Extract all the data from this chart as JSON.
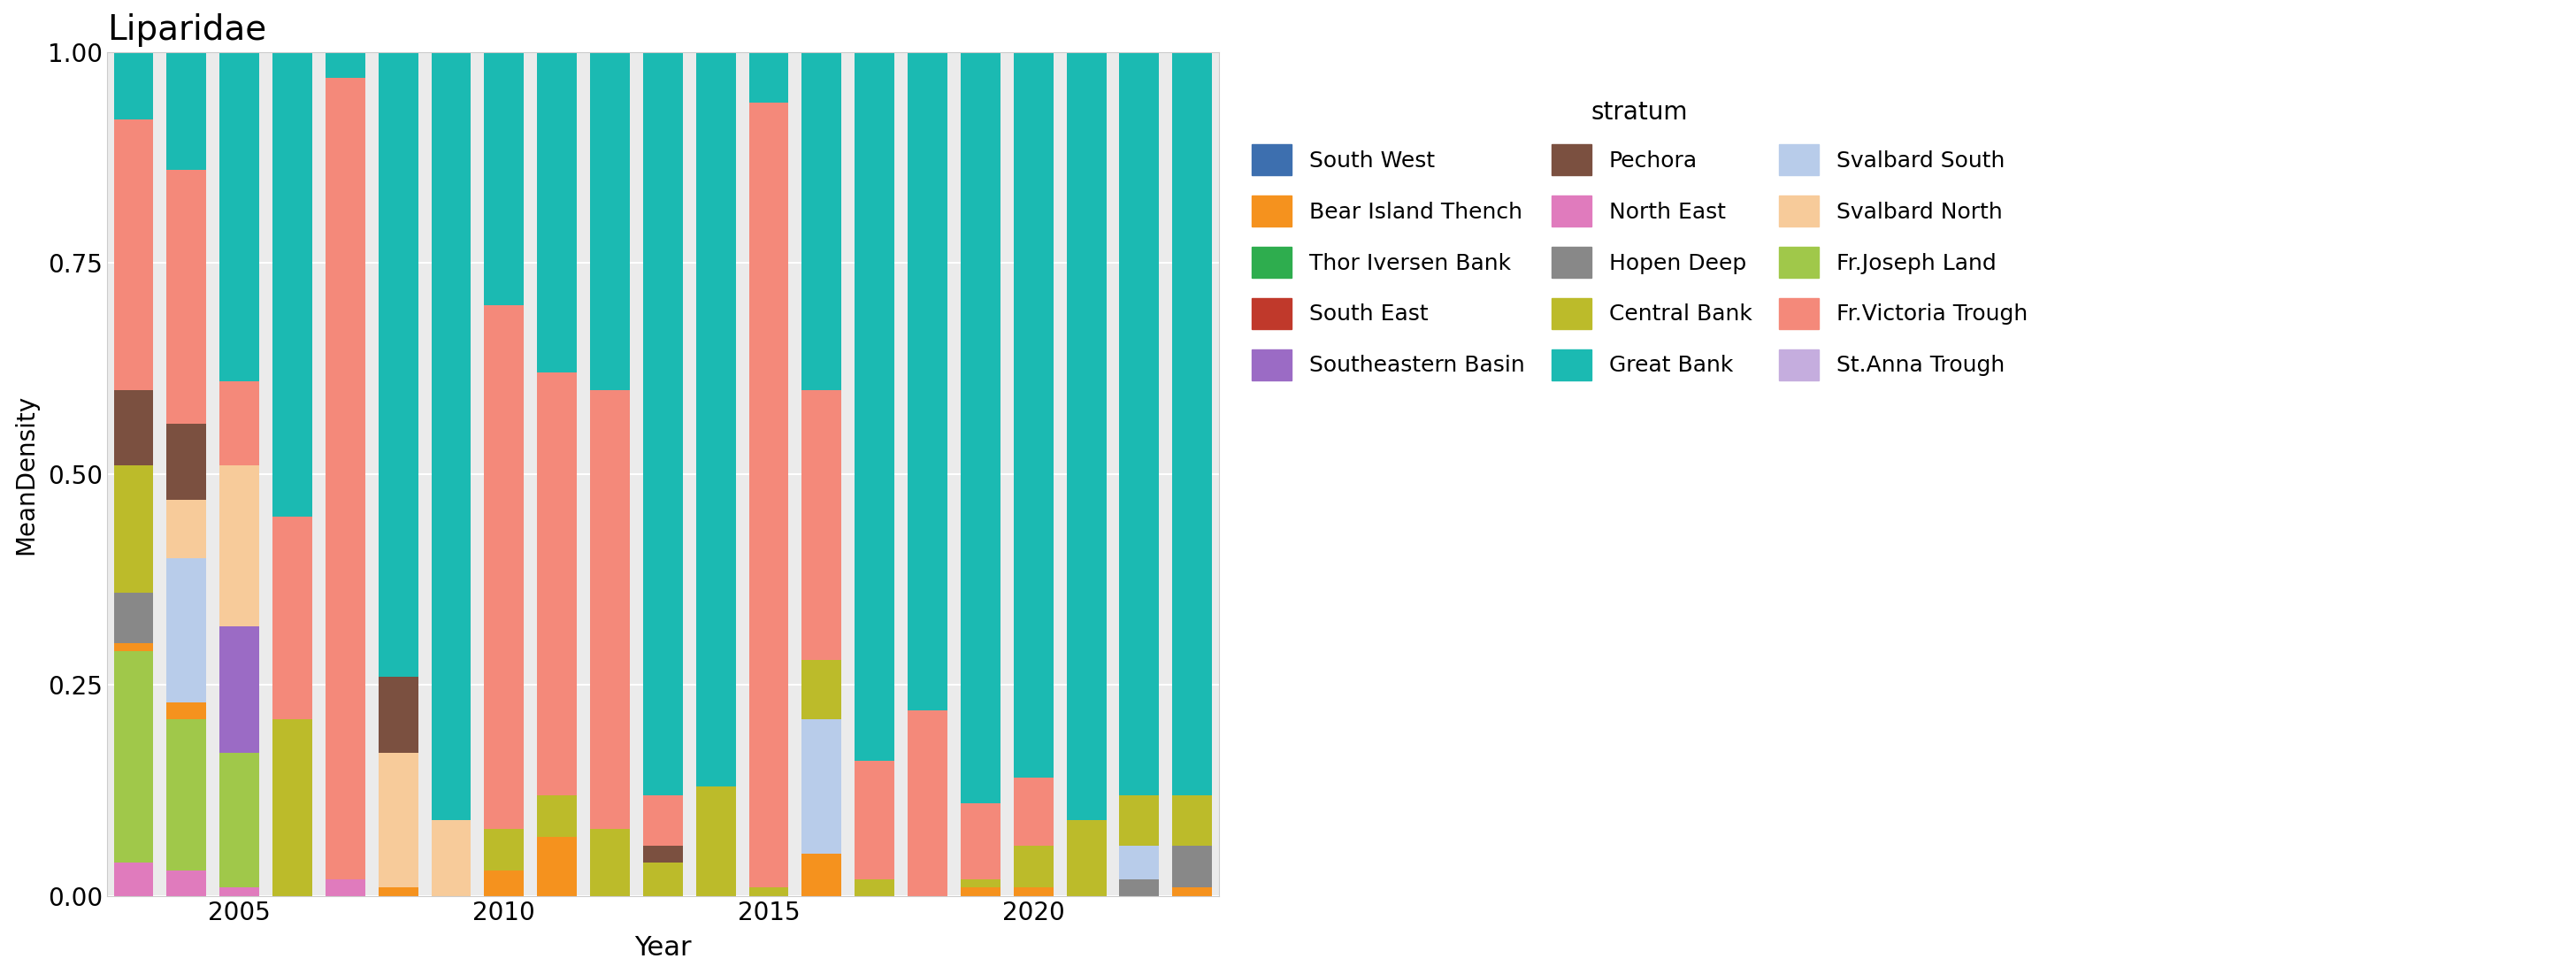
{
  "title": "Liparidae",
  "xlabel": "Year",
  "ylabel": "MeanDensity",
  "legend_title": "stratum",
  "strata_order": [
    "South West",
    "South East",
    "North East",
    "Fr.Joseph Land",
    "Bear Island Thench",
    "Southeastern Basin",
    "Hopen Deep",
    "Svalbard South",
    "Svalbard North",
    "Central Bank",
    "Pechora",
    "Thor Iversen Bank",
    "St.Anna Trough",
    "Fr.Victoria Trough",
    "Great Bank"
  ],
  "colors": {
    "South West": "#3D6FAF",
    "South East": "#C0392B",
    "North East": "#E07BBD",
    "Great Bank": "#1BBAB2",
    "Fr.Joseph Land": "#A0C84A",
    "Bear Island Thench": "#F5921E",
    "Southeastern Basin": "#9B6BC5",
    "Hopen Deep": "#888888",
    "Svalbard South": "#B8CCEA",
    "Fr.Victoria Trough": "#F4897A",
    "Thor Iversen Bank": "#2EAD4E",
    "Pechora": "#7B5040",
    "Central Bank": "#BCBB2A",
    "Svalbard North": "#F7CB9A",
    "St.Anna Trough": "#C5ADDE"
  },
  "years": [
    2003,
    2004,
    2005,
    2006,
    2007,
    2008,
    2009,
    2010,
    2011,
    2012,
    2013,
    2014,
    2015,
    2016,
    2017,
    2018,
    2019,
    2020,
    2021,
    2022,
    2023
  ],
  "data": {
    "South West": [
      0.0,
      0.0,
      0.0,
      0.0,
      0.0,
      0.0,
      0.0,
      0.0,
      0.0,
      0.0,
      0.0,
      0.0,
      0.0,
      0.0,
      0.0,
      0.0,
      0.0,
      0.0,
      0.0,
      0.0,
      0.0
    ],
    "South East": [
      0.0,
      0.0,
      0.0,
      0.0,
      0.0,
      0.0,
      0.0,
      0.0,
      0.0,
      0.0,
      0.0,
      0.0,
      0.0,
      0.0,
      0.0,
      0.0,
      0.0,
      0.0,
      0.0,
      0.0,
      0.0
    ],
    "North East": [
      0.04,
      0.03,
      0.01,
      0.0,
      0.02,
      0.0,
      0.0,
      0.0,
      0.0,
      0.0,
      0.0,
      0.0,
      0.0,
      0.0,
      0.0,
      0.0,
      0.0,
      0.0,
      0.0,
      0.0,
      0.0
    ],
    "Fr.Joseph Land": [
      0.25,
      0.18,
      0.16,
      0.0,
      0.0,
      0.0,
      0.0,
      0.0,
      0.0,
      0.0,
      0.0,
      0.0,
      0.0,
      0.0,
      0.0,
      0.0,
      0.0,
      0.0,
      0.0,
      0.0,
      0.0
    ],
    "Bear Island Thench": [
      0.01,
      0.02,
      0.0,
      0.0,
      0.0,
      0.01,
      0.0,
      0.03,
      0.07,
      0.0,
      0.0,
      0.0,
      0.0,
      0.05,
      0.0,
      0.0,
      0.01,
      0.01,
      0.0,
      0.0,
      0.01
    ],
    "Southeastern Basin": [
      0.0,
      0.0,
      0.15,
      0.0,
      0.0,
      0.0,
      0.0,
      0.0,
      0.0,
      0.0,
      0.0,
      0.0,
      0.0,
      0.0,
      0.0,
      0.0,
      0.0,
      0.0,
      0.0,
      0.0,
      0.0
    ],
    "Hopen Deep": [
      0.06,
      0.0,
      0.0,
      0.0,
      0.0,
      0.0,
      0.0,
      0.0,
      0.0,
      0.0,
      0.0,
      0.0,
      0.0,
      0.0,
      0.0,
      0.0,
      0.0,
      0.0,
      0.0,
      0.02,
      0.05
    ],
    "Svalbard South": [
      0.0,
      0.17,
      0.0,
      0.0,
      0.0,
      0.0,
      0.0,
      0.0,
      0.0,
      0.0,
      0.0,
      0.0,
      0.0,
      0.16,
      0.0,
      0.0,
      0.0,
      0.0,
      0.0,
      0.04,
      0.0
    ],
    "Svalbard North": [
      0.0,
      0.07,
      0.19,
      0.0,
      0.0,
      0.16,
      0.09,
      0.0,
      0.0,
      0.0,
      0.0,
      0.0,
      0.0,
      0.0,
      0.0,
      0.0,
      0.0,
      0.0,
      0.0,
      0.0,
      0.0
    ],
    "Central Bank": [
      0.15,
      0.0,
      0.0,
      0.21,
      0.0,
      0.0,
      0.0,
      0.05,
      0.05,
      0.08,
      0.04,
      0.13,
      0.01,
      0.07,
      0.02,
      0.0,
      0.01,
      0.05,
      0.09,
      0.06,
      0.06
    ],
    "Pechora": [
      0.09,
      0.09,
      0.0,
      0.0,
      0.0,
      0.09,
      0.0,
      0.0,
      0.0,
      0.0,
      0.02,
      0.0,
      0.0,
      0.0,
      0.0,
      0.0,
      0.0,
      0.0,
      0.0,
      0.0,
      0.0
    ],
    "Thor Iversen Bank": [
      0.0,
      0.0,
      0.0,
      0.0,
      0.0,
      0.0,
      0.0,
      0.0,
      0.0,
      0.0,
      0.0,
      0.0,
      0.0,
      0.0,
      0.0,
      0.0,
      0.0,
      0.0,
      0.0,
      0.0,
      0.0
    ],
    "St.Anna Trough": [
      0.0,
      0.0,
      0.0,
      0.0,
      0.0,
      0.0,
      0.0,
      0.0,
      0.0,
      0.0,
      0.0,
      0.0,
      0.0,
      0.0,
      0.0,
      0.0,
      0.0,
      0.0,
      0.0,
      0.0,
      0.0
    ],
    "Fr.Victoria Trough": [
      0.32,
      0.3,
      0.1,
      0.24,
      0.95,
      0.0,
      0.0,
      0.62,
      0.5,
      0.52,
      0.06,
      0.0,
      0.93,
      0.32,
      0.14,
      0.22,
      0.09,
      0.08,
      0.0,
      0.0,
      0.0
    ],
    "Great Bank": [
      0.08,
      0.14,
      0.39,
      0.55,
      0.03,
      0.74,
      0.91,
      0.3,
      0.38,
      0.4,
      0.88,
      0.87,
      0.06,
      0.4,
      0.84,
      0.78,
      0.89,
      0.86,
      0.91,
      0.88,
      0.88
    ]
  },
  "legend_order": [
    "South West",
    "Bear Island Thench",
    "Thor Iversen Bank",
    "South East",
    "Southeastern Basin",
    "Pechora",
    "North East",
    "Hopen Deep",
    "Central Bank",
    "Great Bank",
    "Svalbard South",
    "Svalbard North",
    "Fr.Joseph Land",
    "Fr.Victoria Trough",
    "St.Anna Trough"
  ],
  "background_color": "#ffffff",
  "plot_background": "#ebebeb",
  "grid_color": "#ffffff",
  "ylim": [
    0,
    1.0
  ],
  "bar_width": 0.75
}
